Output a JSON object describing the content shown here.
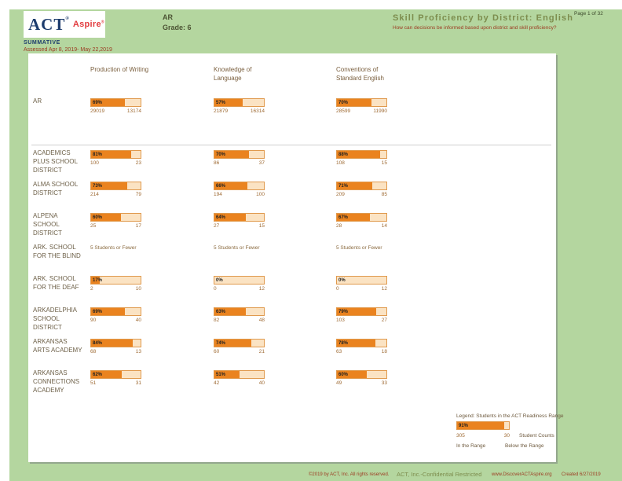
{
  "header": {
    "logo_act": "ACT",
    "logo_reg": "®",
    "logo_aspire": "Aspire",
    "logo_aspire_reg": "®",
    "program": "SUMMATIVE",
    "assessed": "Assessed Apr 8, 2019- May 22,2019",
    "region": "AR",
    "grade": "Grade: 6",
    "title": "Skill Proficiency by District: English",
    "subtitle": "How can decisions be informed based upon district and skill proficiency?",
    "page_label": "Page 1 of 32"
  },
  "columns": [
    {
      "lines": [
        "Production of Writing"
      ]
    },
    {
      "lines": [
        "Knowledge of",
        "Language"
      ]
    },
    {
      "lines": [
        "Conventions of",
        "Standard English"
      ]
    }
  ],
  "rows": [
    {
      "label": "AR",
      "cells": [
        {
          "type": "bar",
          "pct": 69,
          "pct_label": "69%",
          "in_range": "29019",
          "below_range": "13174"
        },
        {
          "type": "bar",
          "pct": 57,
          "pct_label": "57%",
          "in_range": "21879",
          "below_range": "16314"
        },
        {
          "type": "bar",
          "pct": 70,
          "pct_label": "70%",
          "in_range": "28599",
          "below_range": "11990"
        }
      ]
    },
    {
      "label": "ACADEMICS PLUS SCHOOL DISTRICT",
      "cells": [
        {
          "type": "bar",
          "pct": 81,
          "pct_label": "81%",
          "in_range": "100",
          "below_range": "23"
        },
        {
          "type": "bar",
          "pct": 70,
          "pct_label": "70%",
          "in_range": "86",
          "below_range": "37"
        },
        {
          "type": "bar",
          "pct": 88,
          "pct_label": "88%",
          "in_range": "108",
          "below_range": "15"
        }
      ]
    },
    {
      "label": "ALMA SCHOOL DISTRICT",
      "cells": [
        {
          "type": "bar",
          "pct": 73,
          "pct_label": "73%",
          "in_range": "214",
          "below_range": "79"
        },
        {
          "type": "bar",
          "pct": 66,
          "pct_label": "66%",
          "in_range": "194",
          "below_range": "100"
        },
        {
          "type": "bar",
          "pct": 71,
          "pct_label": "71%",
          "in_range": "209",
          "below_range": "85"
        }
      ]
    },
    {
      "label": "ALPENA SCHOOL DISTRICT",
      "cells": [
        {
          "type": "bar",
          "pct": 60,
          "pct_label": "60%",
          "in_range": "25",
          "below_range": "17"
        },
        {
          "type": "bar",
          "pct": 64,
          "pct_label": "64%",
          "in_range": "27",
          "below_range": "15"
        },
        {
          "type": "bar",
          "pct": 67,
          "pct_label": "67%",
          "in_range": "28",
          "below_range": "14"
        }
      ]
    },
    {
      "label": "ARK. SCHOOL FOR THE BLIND",
      "cells": [
        {
          "type": "note",
          "text": "5 Students or Fewer"
        },
        {
          "type": "note",
          "text": "5 Students or Fewer"
        },
        {
          "type": "note",
          "text": "5 Students or Fewer"
        }
      ]
    },
    {
      "label": "ARK. SCHOOL FOR THE DEAF",
      "cells": [
        {
          "type": "bar",
          "pct": 17,
          "pct_label": "17%",
          "in_range": "2",
          "below_range": "10"
        },
        {
          "type": "bar",
          "pct": 0,
          "pct_label": "0%",
          "in_range": "0",
          "below_range": "12"
        },
        {
          "type": "bar",
          "pct": 0,
          "pct_label": "0%",
          "in_range": "0",
          "below_range": "12"
        }
      ]
    },
    {
      "label": "ARKADELPHIA SCHOOL DISTRICT",
      "cells": [
        {
          "type": "bar",
          "pct": 69,
          "pct_label": "69%",
          "in_range": "90",
          "below_range": "40"
        },
        {
          "type": "bar",
          "pct": 63,
          "pct_label": "63%",
          "in_range": "82",
          "below_range": "48"
        },
        {
          "type": "bar",
          "pct": 79,
          "pct_label": "79%",
          "in_range": "103",
          "below_range": "27"
        }
      ]
    },
    {
      "label": "ARKANSAS ARTS ACADEMY",
      "cells": [
        {
          "type": "bar",
          "pct": 84,
          "pct_label": "84%",
          "in_range": "68",
          "below_range": "13"
        },
        {
          "type": "bar",
          "pct": 74,
          "pct_label": "74%",
          "in_range": "60",
          "below_range": "21"
        },
        {
          "type": "bar",
          "pct": 78,
          "pct_label": "78%",
          "in_range": "63",
          "below_range": "18"
        }
      ]
    },
    {
      "label": "ARKANSAS CONNECTIONS ACADEMY",
      "cells": [
        {
          "type": "bar",
          "pct": 62,
          "pct_label": "62%",
          "in_range": "51",
          "below_range": "31"
        },
        {
          "type": "bar",
          "pct": 51,
          "pct_label": "51%",
          "in_range": "42",
          "below_range": "40"
        },
        {
          "type": "bar",
          "pct": 60,
          "pct_label": "60%",
          "in_range": "49",
          "below_range": "33"
        }
      ]
    }
  ],
  "legend": {
    "title": "Legend: Students in the ACT Readiness Range",
    "pct": 91,
    "pct_label": "91%",
    "in_range": "305",
    "below_range": "30",
    "counts_label": "Student Counts",
    "in_label": "In the Range",
    "below_label": "Below the Range"
  },
  "footer": {
    "copyright": "©2019 by ACT, Inc. All rights reserved.",
    "confidential": "ACT, Inc.-Confidential Restricted",
    "website": "www.DiscoverACTAspire.org",
    "created": "Created 6/27/2019"
  },
  "colors": {
    "page_green": "#b4d69f",
    "bar_orange": "#ea831f",
    "bar_track": "#fbe3c3",
    "bar_border": "#e09a4e",
    "act_navy": "#1d3c6d",
    "aspire_red": "#e23b3e",
    "title_olive": "#7d8d4e",
    "text_red": "#9c3b22"
  }
}
